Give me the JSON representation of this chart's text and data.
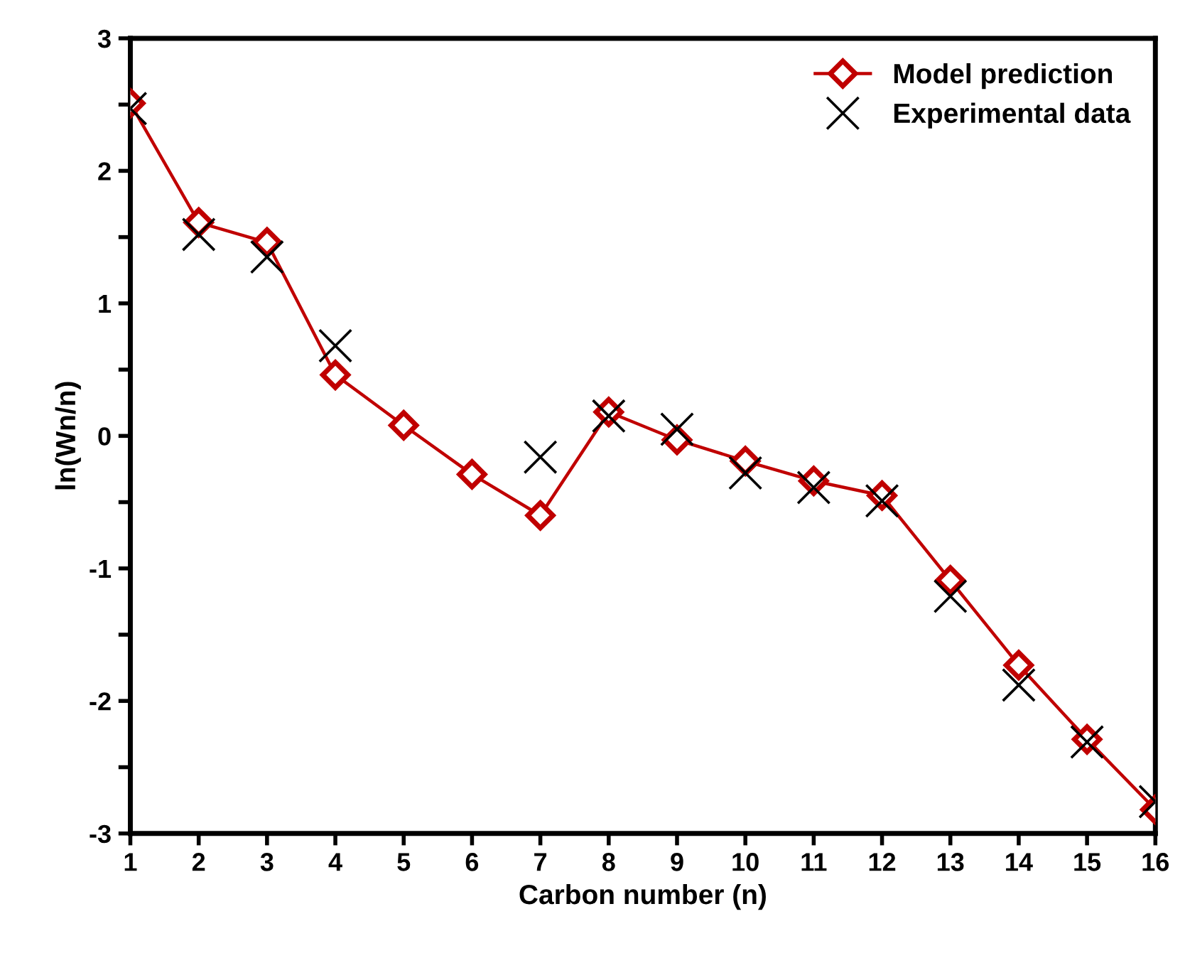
{
  "chart_data": {
    "type": "line",
    "xlabel": "Carbon number (n)",
    "ylabel": "ln(Wn/n)",
    "x": [
      1,
      2,
      3,
      4,
      5,
      6,
      7,
      8,
      9,
      10,
      11,
      12,
      13,
      14,
      15,
      16
    ],
    "series": [
      {
        "name": "Model prediction",
        "color": "#c00000",
        "marker": "diamond",
        "values": [
          2.51,
          1.61,
          1.46,
          0.46,
          0.08,
          -0.29,
          -0.6,
          0.18,
          -0.03,
          -0.19,
          -0.34,
          -0.45,
          -1.09,
          -1.73,
          -2.29,
          -2.82
        ]
      },
      {
        "name": "Experimental data",
        "type": "scatter",
        "color": "#000000",
        "marker": "cross",
        "values": [
          2.47,
          1.52,
          1.35,
          0.68,
          null,
          null,
          -0.16,
          0.15,
          0.05,
          -0.28,
          -0.39,
          -0.49,
          -1.21,
          -1.88,
          -2.31,
          -2.76
        ]
      }
    ],
    "xlim": [
      1,
      16
    ],
    "xticks": [
      1,
      2,
      3,
      4,
      5,
      6,
      7,
      8,
      9,
      10,
      11,
      12,
      13,
      14,
      15,
      16
    ],
    "ylim": [
      -3,
      3
    ],
    "yticks": [
      -3,
      {
        "value": -2.5,
        "label": null
      },
      -2,
      {
        "value": -1.5,
        "label": null
      },
      -1,
      {
        "value": -0.5,
        "label": null
      },
      0,
      {
        "value": 0.5,
        "label": null
      },
      1,
      {
        "value": 1.5,
        "label": null
      },
      2,
      {
        "value": 2.5,
        "label": null
      },
      3
    ],
    "legend": "top right",
    "grid": false
  }
}
